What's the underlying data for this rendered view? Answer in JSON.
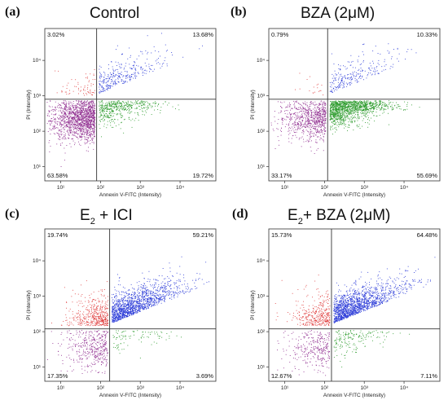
{
  "chart_data": [
    {
      "type": "scatter",
      "letter": "(a)",
      "title": "Control",
      "title_sub": "",
      "title_rest": "",
      "xlabel": "Annexin V-FITC (Intensity)",
      "ylabel": "PI (Intensity)",
      "xscale": "log",
      "yscale": "log",
      "xticks": [
        "10¹",
        "10²",
        "10³",
        "10⁴"
      ],
      "yticks": [
        "10¹",
        "10²",
        "10³",
        "10⁴"
      ],
      "gate": {
        "x": 80,
        "y": 800
      },
      "quadrants": {
        "upper_left": "3.02%",
        "upper_right": "13.68%",
        "lower_left": "63.58%",
        "lower_right": "19.72%"
      },
      "series": [
        {
          "color": "#8e2a8e",
          "quadrant": "lower_left"
        },
        {
          "color": "#2a9a2a",
          "quadrant": "lower_right"
        },
        {
          "color": "#2a3ad8",
          "quadrant": "upper_right"
        },
        {
          "color": "#e04040",
          "quadrant": "upper_left"
        }
      ]
    },
    {
      "type": "scatter",
      "letter": "(b)",
      "title": "BZA (2μM)",
      "title_sub": "",
      "title_rest": "",
      "xlabel": "Annexin V-FITC (Intensity)",
      "ylabel": "PI (Intensity)",
      "xscale": "log",
      "yscale": "log",
      "xticks": [
        "10¹",
        "10²",
        "10³",
        "10⁴"
      ],
      "yticks": [
        "10¹",
        "10²",
        "10³",
        "10⁴"
      ],
      "gate": {
        "x": 120,
        "y": 800
      },
      "quadrants": {
        "upper_left": "0.79%",
        "upper_right": "10.33%",
        "lower_left": "33.17%",
        "lower_right": "55.69%"
      },
      "series": [
        {
          "color": "#8e2a8e",
          "quadrant": "lower_left"
        },
        {
          "color": "#2a9a2a",
          "quadrant": "lower_right"
        },
        {
          "color": "#2a3ad8",
          "quadrant": "upper_right"
        },
        {
          "color": "#e04040",
          "quadrant": "upper_left"
        }
      ]
    },
    {
      "type": "scatter",
      "letter": "(c)",
      "title": "E",
      "title_sub": "2",
      "title_rest": " + ICI",
      "xlabel": "Annexin V-FITC (Intensity)",
      "ylabel": "PI (Intensity)",
      "xscale": "log",
      "yscale": "log",
      "xticks": [
        "10¹",
        "10²",
        "10³",
        "10⁴"
      ],
      "yticks": [
        "10¹",
        "10²",
        "10³",
        "10⁴"
      ],
      "gate": {
        "x": 170,
        "y": 120
      },
      "quadrants": {
        "upper_left": "19.74%",
        "upper_right": "59.21%",
        "lower_left": "17.35%",
        "lower_right": "3.69%"
      },
      "series": [
        {
          "color": "#8e2a8e",
          "quadrant": "lower_left"
        },
        {
          "color": "#2a9a2a",
          "quadrant": "lower_right"
        },
        {
          "color": "#2a3ad8",
          "quadrant": "upper_right"
        },
        {
          "color": "#e04040",
          "quadrant": "upper_left"
        }
      ]
    },
    {
      "type": "scatter",
      "letter": "(d)",
      "title": "E",
      "title_sub": "2",
      "title_rest": "+ BZA (2μM)",
      "xlabel": "Annexin V-FITC (Intensity)",
      "ylabel": "PI (Intensity)",
      "xscale": "log",
      "yscale": "log",
      "xticks": [
        "10¹",
        "10²",
        "10³",
        "10⁴"
      ],
      "yticks": [
        "10¹",
        "10²",
        "10³",
        "10⁴"
      ],
      "gate": {
        "x": 150,
        "y": 120
      },
      "quadrants": {
        "upper_left": "15.73%",
        "upper_right": "64.48%",
        "lower_left": "12.67%",
        "lower_right": "7.11%"
      },
      "series": [
        {
          "color": "#8e2a8e",
          "quadrant": "lower_left"
        },
        {
          "color": "#2a9a2a",
          "quadrant": "lower_right"
        },
        {
          "color": "#2a3ad8",
          "quadrant": "upper_right"
        },
        {
          "color": "#e04040",
          "quadrant": "upper_left"
        }
      ]
    }
  ]
}
